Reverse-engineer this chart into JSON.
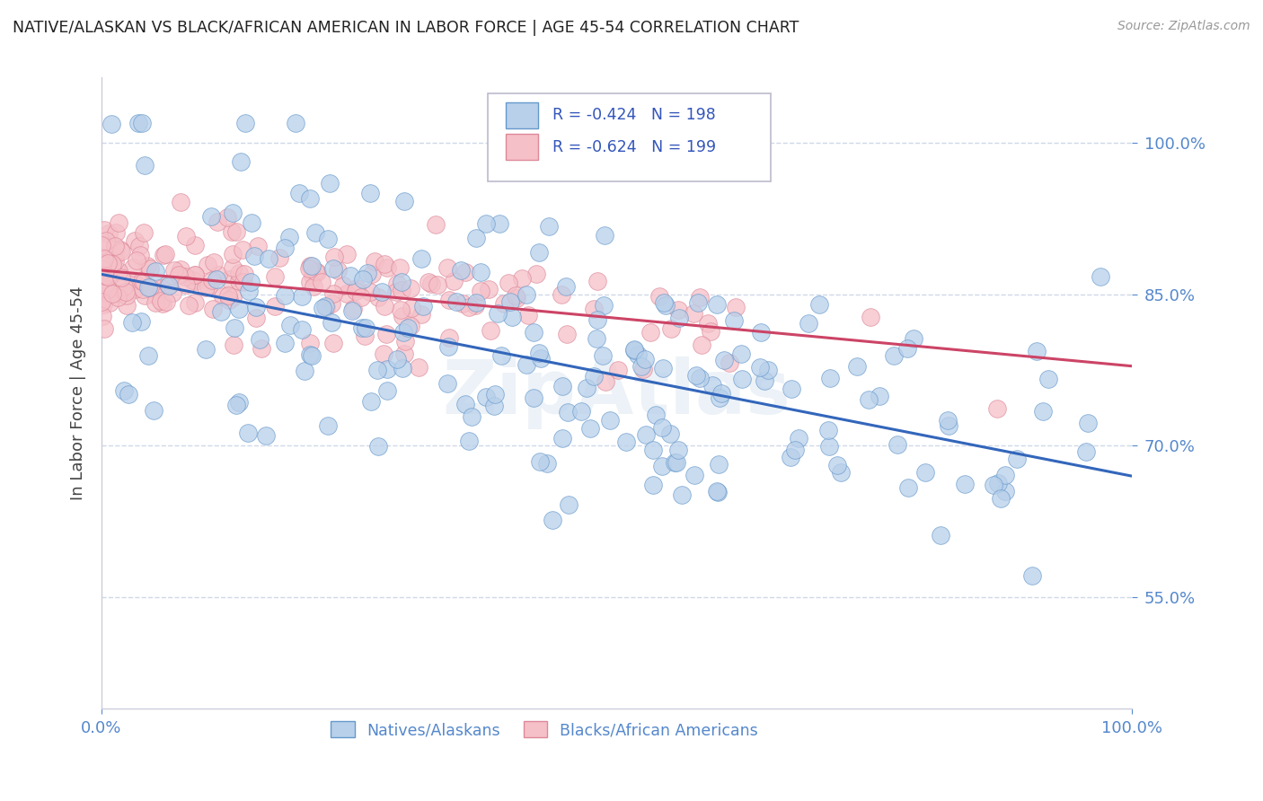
{
  "title": "NATIVE/ALASKAN VS BLACK/AFRICAN AMERICAN IN LABOR FORCE | AGE 45-54 CORRELATION CHART",
  "source_text": "Source: ZipAtlas.com",
  "ylabel": "In Labor Force | Age 45-54",
  "watermark": "ZipAtlas",
  "xlim": [
    0.0,
    1.0
  ],
  "ylim": [
    0.44,
    1.065
  ],
  "yticks": [
    0.55,
    0.7,
    0.85,
    1.0
  ],
  "ytick_labels": [
    "55.0%",
    "70.0%",
    "85.0%",
    "100.0%"
  ],
  "xtick_labels": [
    "0.0%",
    "100.0%"
  ],
  "xticks": [
    0.0,
    1.0
  ],
  "blue_R": -0.424,
  "blue_N": 198,
  "pink_R": -0.624,
  "pink_N": 199,
  "blue_color": "#b8d0ea",
  "blue_edge_color": "#6699cc",
  "blue_line_color": "#3366bb",
  "pink_color": "#f5c0c8",
  "pink_edge_color": "#dd8899",
  "pink_line_color": "#cc4466",
  "blue_label": "Natives/Alaskans",
  "pink_label": "Blacks/African Americans",
  "legend_text_color": "#3355bb",
  "title_color": "#222222",
  "axis_color": "#5588cc",
  "grid_color": "#d0d8e8",
  "background_color": "#ffffff",
  "blue_intercept": 0.87,
  "blue_slope": -0.2,
  "pink_intercept": 0.874,
  "pink_slope": -0.095,
  "seed": 42
}
